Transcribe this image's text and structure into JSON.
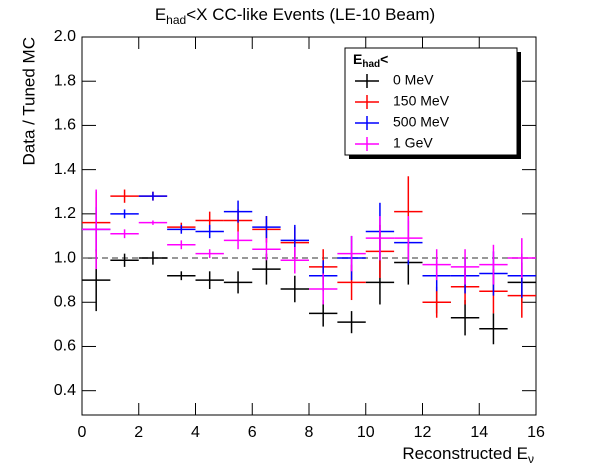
{
  "chart_data": {
    "type": "errorbar",
    "title": {
      "base": "E",
      "sub": "had",
      "rest": "<X CC-like Events (LE-10 Beam)"
    },
    "x_label": {
      "base": "Reconstructed E",
      "sub": "ν"
    },
    "y_label": "Data / Tuned MC",
    "legend_title": {
      "base": "E",
      "sub": "had",
      "rest": "<"
    },
    "legend_position": "upper right",
    "x": [
      0.5,
      1.5,
      2.5,
      3.5,
      4.5,
      5.5,
      6.5,
      7.5,
      8.5,
      9.5,
      10.5,
      11.5,
      12.5,
      13.5,
      14.5,
      15.5
    ],
    "xerr": 0.5,
    "reference_line": {
      "value": 1.0,
      "label": "1.0"
    },
    "series": [
      {
        "name": "0 MeV",
        "color": "#000000",
        "values": [
          0.9,
          0.99,
          1.0,
          0.92,
          0.9,
          0.89,
          0.95,
          0.86,
          0.75,
          0.71,
          0.89,
          0.98,
          0.8,
          0.73,
          0.68,
          0.89
        ],
        "errors": [
          0.14,
          0.03,
          0.03,
          0.02,
          0.04,
          0.05,
          0.07,
          0.06,
          0.06,
          0.05,
          0.1,
          0.1,
          0.05,
          0.08,
          0.07,
          0.09
        ]
      },
      {
        "name": "150 MeV",
        "color": "#ff0000",
        "values": [
          1.16,
          1.28,
          1.28,
          1.14,
          1.17,
          1.17,
          1.13,
          1.07,
          0.96,
          0.89,
          1.03,
          1.21,
          0.8,
          0.87,
          0.85,
          0.83
        ],
        "errors": [
          0.14,
          0.03,
          0.02,
          0.02,
          0.04,
          0.05,
          0.06,
          0.07,
          0.08,
          0.08,
          0.12,
          0.16,
          0.07,
          0.08,
          0.1,
          0.1
        ]
      },
      {
        "name": "500 MeV",
        "color": "#0000ff",
        "values": [
          1.13,
          1.2,
          1.28,
          1.13,
          1.12,
          1.21,
          1.14,
          1.08,
          0.92,
          1.0,
          1.12,
          1.07,
          0.92,
          0.92,
          0.93,
          0.92
        ],
        "errors": [
          0.1,
          0.02,
          0.02,
          0.02,
          0.03,
          0.05,
          0.05,
          0.07,
          0.07,
          0.1,
          0.13,
          0.1,
          0.07,
          0.08,
          0.1,
          0.1
        ]
      },
      {
        "name": "1 GeV",
        "color": "#ff00ff",
        "values": [
          1.13,
          1.11,
          1.16,
          1.06,
          1.02,
          1.08,
          1.04,
          0.99,
          0.86,
          1.02,
          1.09,
          1.09,
          0.97,
          0.96,
          0.97,
          1.0
        ],
        "errors": [
          0.18,
          0.02,
          0.01,
          0.02,
          0.02,
          0.04,
          0.05,
          0.06,
          0.07,
          0.08,
          0.1,
          0.1,
          0.07,
          0.08,
          0.09,
          0.09
        ]
      }
    ],
    "xlim": [
      0,
      16
    ],
    "xticks": [
      0,
      2,
      4,
      6,
      8,
      10,
      12,
      14,
      16
    ],
    "ylim": [
      0.29,
      2.0
    ],
    "yticks": [
      0.4,
      0.6,
      0.8,
      {
        "value": 1.0,
        "label": "1.0"
      },
      1.2,
      1.4,
      1.6,
      1.8,
      {
        "value": 2.0,
        "label": "2.0"
      }
    ]
  }
}
